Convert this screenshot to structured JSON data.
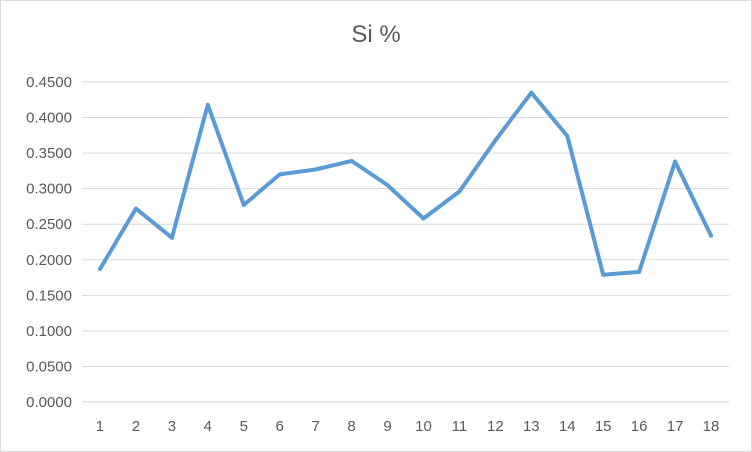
{
  "chart_data": {
    "type": "line",
    "title": "Si %",
    "xlabel": "",
    "ylabel": "",
    "categories": [
      "1",
      "2",
      "3",
      "4",
      "5",
      "6",
      "7",
      "8",
      "9",
      "10",
      "11",
      "12",
      "13",
      "14",
      "15",
      "16",
      "17",
      "18"
    ],
    "series": [
      {
        "values": [
          0.187,
          0.272,
          0.231,
          0.418,
          0.277,
          0.32,
          0.327,
          0.339,
          0.305,
          0.258,
          0.296,
          0.368,
          0.435,
          0.374,
          0.179,
          0.183,
          0.338,
          0.234
        ],
        "color": "#5b9bd5"
      }
    ],
    "ylim": [
      0,
      0.45
    ],
    "yticks": [
      "0.0000",
      "0.0500",
      "0.1000",
      "0.1500",
      "0.2000",
      "0.2500",
      "0.3000",
      "0.3500",
      "0.4000",
      "0.4500"
    ],
    "grid": true,
    "legend": "none"
  }
}
